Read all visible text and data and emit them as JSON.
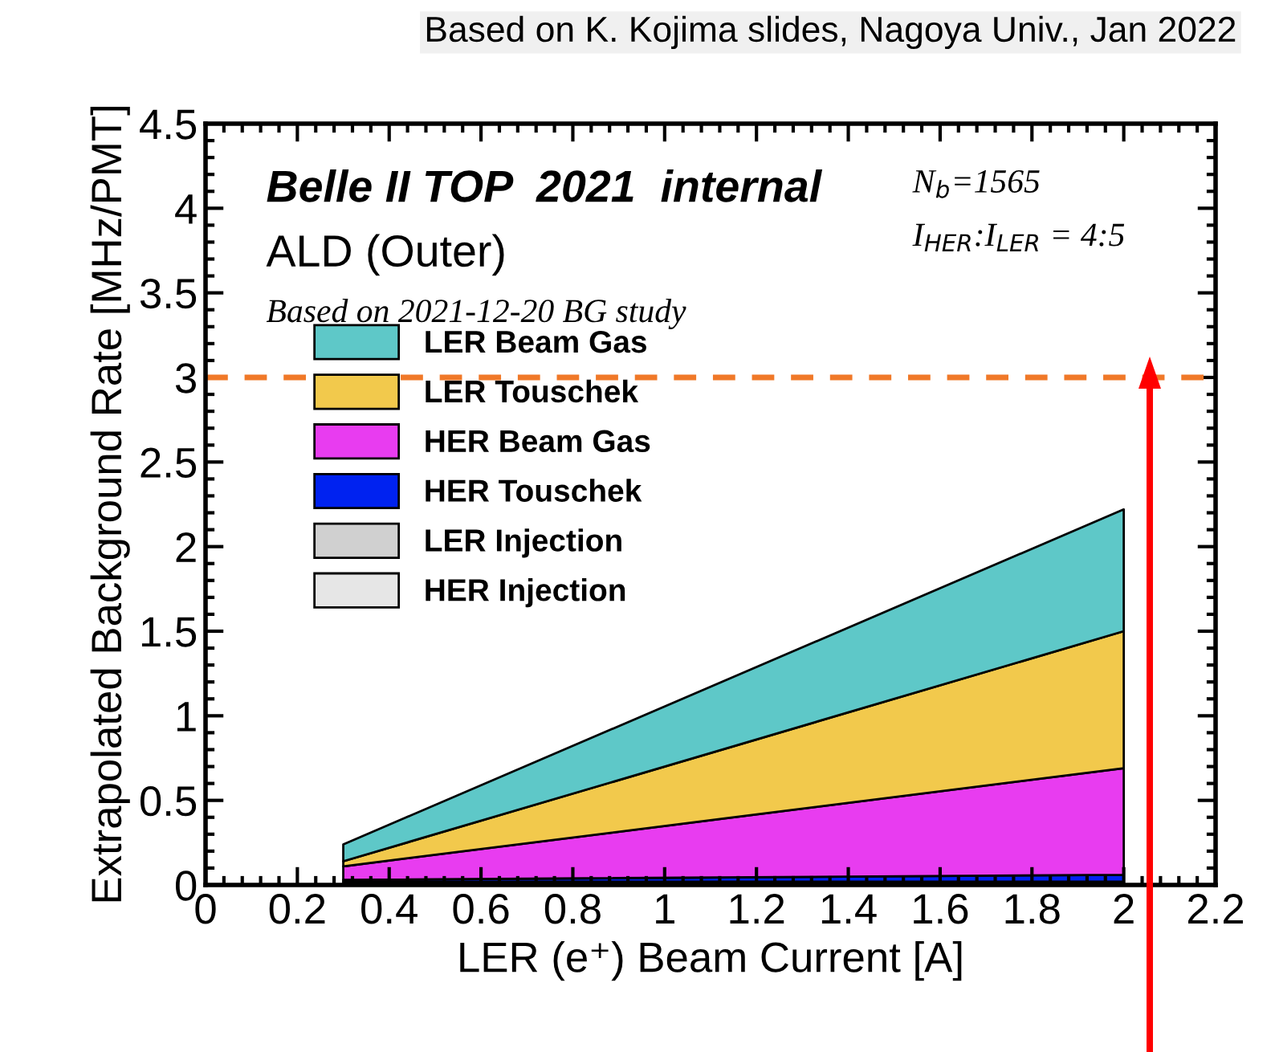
{
  "chart_data": {
    "type": "area",
    "stacked": true,
    "title": "Belle II TOP  2021  internal",
    "subtitle": "ALD (Outer)",
    "xlabel": "LER (e⁺) Beam Current [A]",
    "ylabel": "Extrapolated Background Rate [MHz/PMT]",
    "x": [
      0.3,
      2.0
    ],
    "series": [
      {
        "name": "HER Injection",
        "color": "#e6e6e6",
        "values": [
          0.01,
          0.01
        ]
      },
      {
        "name": "LER Injection",
        "color": "#d0d0d0",
        "values": [
          0.01,
          0.01
        ]
      },
      {
        "name": "HER Touschek",
        "color": "#0022f0",
        "values": [
          0.01,
          0.04
        ]
      },
      {
        "name": "HER Beam Gas",
        "color": "#e83cf0",
        "values": [
          0.08,
          0.63
        ]
      },
      {
        "name": "LER Touschek",
        "color": "#f2c94c",
        "values": [
          0.03,
          0.81
        ]
      },
      {
        "name": "LER Beam Gas",
        "color": "#5ec8c8",
        "values": [
          0.1,
          0.72
        ]
      }
    ],
    "xlim": [
      0,
      2.2
    ],
    "xticks": [
      0,
      0.2,
      0.4,
      0.6,
      0.8,
      1,
      1.2,
      1.4,
      1.6,
      1.8,
      2,
      2.2
    ],
    "ylim": [
      0,
      4.5
    ],
    "yticks": [
      0,
      0.5,
      1,
      1.5,
      2,
      2.5,
      3,
      3.5,
      4,
      4.5
    ],
    "ref_lines": [
      {
        "axis": "y",
        "value": 3,
        "color": "#f07828",
        "line_style": "dashed"
      }
    ],
    "legend": "left",
    "grid": false,
    "annotations": [
      "Based on 2021-12-20 BG study",
      "N$_{b}$=1565",
      "I$_{HER}$:I$_{LER}$ = 4:5",
      "Based on K. Kojima slides, Nagoya Univ., Jan 2022"
    ]
  }
}
